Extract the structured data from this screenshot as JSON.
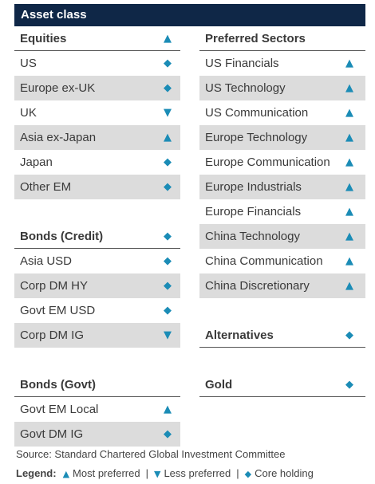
{
  "title": "Asset class",
  "columns": [
    {
      "sections": [
        {
          "heading": "Equities",
          "icon": "▲",
          "rows": [
            {
              "label": "US",
              "icon": "◆"
            },
            {
              "label": "Europe ex-UK",
              "icon": "◆"
            },
            {
              "label": "UK",
              "icon": "▼"
            },
            {
              "label": "Asia ex-Japan",
              "icon": "▲"
            },
            {
              "label": "Japan",
              "icon": "◆"
            },
            {
              "label": "Other EM",
              "icon": "◆"
            }
          ]
        },
        {
          "heading": "Bonds (Credit)",
          "icon": "◆",
          "rows": [
            {
              "label": "Asia USD",
              "icon": "◆"
            },
            {
              "label": "Corp DM HY",
              "icon": "◆"
            },
            {
              "label": "Govt EM USD",
              "icon": "◆"
            },
            {
              "label": "Corp DM IG",
              "icon": "▼"
            }
          ]
        },
        {
          "heading": "Bonds (Govt)",
          "rows": [
            {
              "label": "Govt EM Local",
              "icon": "▲"
            },
            {
              "label": "Govt DM IG",
              "icon": "◆"
            }
          ]
        }
      ]
    },
    {
      "sections": [
        {
          "heading": "Preferred Sectors",
          "rows": [
            {
              "label": "US Financials",
              "icon": "▲"
            },
            {
              "label": "US Technology",
              "icon": "▲"
            },
            {
              "label": "US Communication",
              "icon": "▲"
            },
            {
              "label": "Europe Technology",
              "icon": "▲"
            },
            {
              "label": "Europe Communication",
              "icon": "▲"
            },
            {
              "label": "Europe Industrials",
              "icon": "▲"
            },
            {
              "label": "Europe Financials",
              "icon": "▲"
            },
            {
              "label": "China Technology",
              "icon": "▲"
            },
            {
              "label": "China Communication",
              "icon": "▲"
            },
            {
              "label": "China Discretionary",
              "icon": "▲"
            }
          ]
        },
        {
          "heading": "Alternatives",
          "icon": "◆",
          "rows": []
        },
        {
          "heading": "Gold",
          "icon": "◆",
          "rows": []
        }
      ]
    }
  ],
  "source": "Source: Standard Chartered Global Investment Committee",
  "legend": {
    "title": "Legend:",
    "separator": "|",
    "items": [
      {
        "icon": "▲",
        "label": "Most preferred"
      },
      {
        "icon": "▼",
        "label": "Less preferred"
      },
      {
        "icon": "◆",
        "label": "Core holding"
      }
    ]
  }
}
